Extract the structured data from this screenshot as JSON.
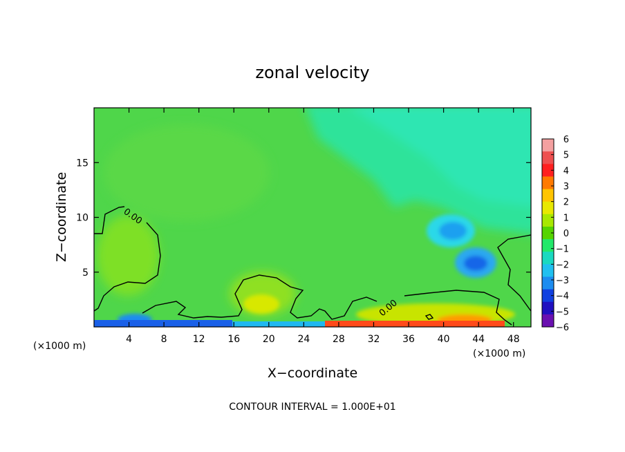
{
  "chart_data": {
    "type": "heatmap",
    "title": "zonal velocity",
    "xlabel": "X−coordinate",
    "ylabel": "Z−coordinate",
    "x_unit_left": "(×1000 m)",
    "x_unit_right": "(×1000 m)",
    "footer": "CONTOUR INTERVAL = 1.000E+01",
    "xlim": [
      0,
      50
    ],
    "ylim": [
      0,
      20
    ],
    "x_ticks": [
      4,
      8,
      12,
      16,
      20,
      24,
      28,
      32,
      36,
      40,
      44,
      48
    ],
    "y_ticks": [
      5,
      10,
      15
    ],
    "colorbar": {
      "levels": [
        6,
        5,
        4,
        3,
        2,
        1,
        0,
        -1,
        -2,
        -3,
        -4,
        -5,
        -6
      ],
      "colors": [
        "#f4a0a0",
        "#ee5050",
        "#ff2020",
        "#ff7a00",
        "#ffc400",
        "#e8e800",
        "#a8e800",
        "#55d400",
        "#22e86a",
        "#1ad9c0",
        "#20c0f0",
        "#1c8cf0",
        "#1040e0",
        "#2010c0",
        "#6a10b0"
      ]
    },
    "contour_labels": [
      {
        "text": "0.00",
        "x": 5,
        "y": 10.4
      },
      {
        "text": "0.00",
        "x": 34,
        "y": 2.0
      }
    ],
    "features": [
      {
        "kind": "min",
        "x": 41,
        "y": 9,
        "value": -3
      },
      {
        "kind": "min",
        "x": 43,
        "y": 6,
        "value": -3.5
      },
      {
        "kind": "max",
        "x": 4,
        "y": 7,
        "value": 1
      },
      {
        "kind": "max",
        "x": 19,
        "y": 2.5,
        "value": 2
      },
      {
        "kind": "max",
        "x": 43,
        "y": 0.5,
        "value": 4
      }
    ]
  }
}
